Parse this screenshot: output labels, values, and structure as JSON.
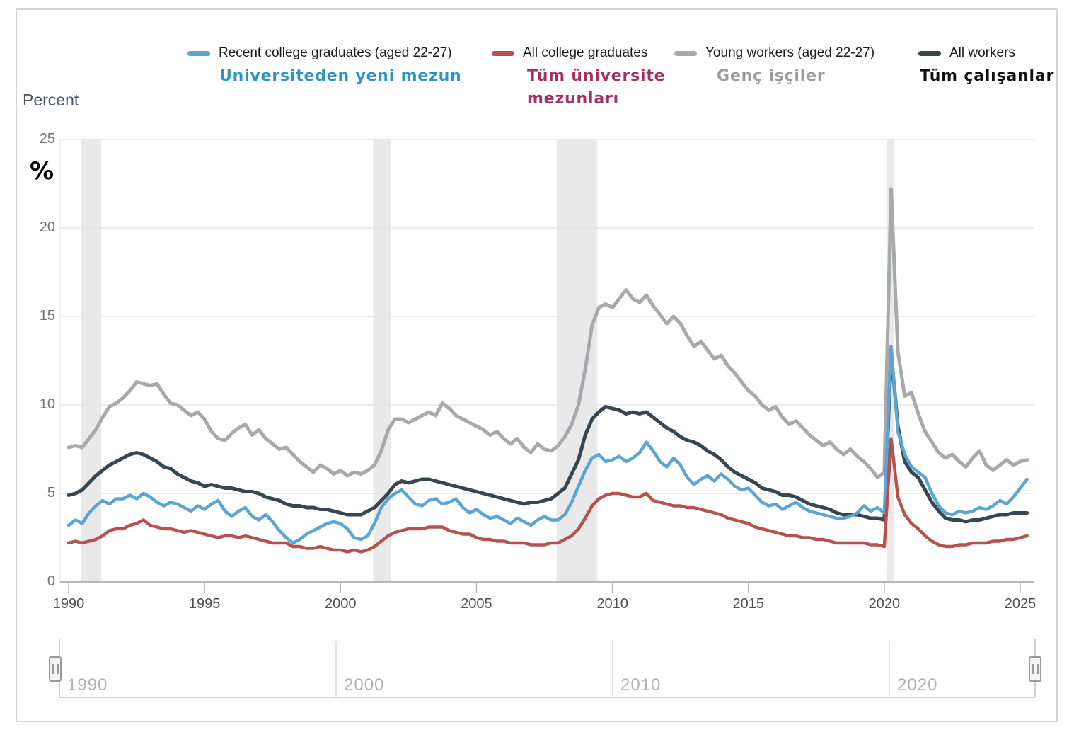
{
  "legend": {
    "items": [
      {
        "label": "Recent college graduates (aged 22-27)",
        "annotation": "Universiteden yeni mezun",
        "annotation2": "",
        "color": "#5BA4D4",
        "annotation_color": "#2E93C2"
      },
      {
        "label": "All college graduates",
        "annotation": "Tüm üniversite",
        "annotation2": "mezunları",
        "color": "#B5524E",
        "annotation_color": "#A33160"
      },
      {
        "label": "Young workers (aged 22-27)",
        "annotation": "Genç işçiler",
        "annotation2": "",
        "color": "#A7A9AC",
        "annotation_color": "#9B9B9B"
      },
      {
        "label": "All workers",
        "annotation": "Tüm çalışanlar",
        "annotation2": "",
        "color": "#37474F",
        "annotation_color": "#111111"
      }
    ]
  },
  "axis": {
    "title": "Percent",
    "percent_annotation": "%"
  },
  "slider": {
    "labels": [
      "1990",
      "2000",
      "2010",
      "2020"
    ]
  },
  "chart_data": {
    "type": "line",
    "title": "",
    "ylabel": "Percent",
    "x_start": 1990,
    "x_step": 0.25,
    "xlim": [
      1989.7,
      2025.6
    ],
    "ylim": [
      0,
      25
    ],
    "yticks": [
      0,
      5,
      10,
      15,
      20,
      25
    ],
    "xticks": [
      1990,
      1995,
      2000,
      2005,
      2010,
      2015,
      2020,
      2025
    ],
    "grid": true,
    "legend_position": "top",
    "recessions": [
      [
        1990.45,
        1991.2
      ],
      [
        2001.2,
        2001.85
      ],
      [
        2007.95,
        2009.45
      ],
      [
        2020.1,
        2020.35
      ]
    ],
    "series": [
      {
        "name": "Young workers (aged 22-27)",
        "color": "#A7A9AC",
        "values": [
          7.6,
          7.7,
          7.6,
          8.1,
          8.6,
          9.3,
          9.9,
          10.1,
          10.4,
          10.8,
          11.3,
          11.2,
          11.1,
          11.2,
          10.6,
          10.1,
          10.0,
          9.7,
          9.4,
          9.6,
          9.2,
          8.5,
          8.1,
          8.0,
          8.4,
          8.7,
          8.9,
          8.3,
          8.6,
          8.1,
          7.8,
          7.5,
          7.6,
          7.2,
          6.8,
          6.5,
          6.2,
          6.6,
          6.4,
          6.1,
          6.3,
          6.0,
          6.2,
          6.1,
          6.3,
          6.6,
          7.4,
          8.6,
          9.2,
          9.2,
          9.0,
          9.2,
          9.4,
          9.6,
          9.4,
          10.1,
          9.8,
          9.4,
          9.2,
          9.0,
          8.8,
          8.6,
          8.3,
          8.5,
          8.1,
          7.8,
          8.1,
          7.6,
          7.3,
          7.8,
          7.5,
          7.4,
          7.7,
          8.2,
          8.9,
          10.0,
          12.0,
          14.5,
          15.5,
          15.7,
          15.5,
          16.0,
          16.5,
          16.0,
          15.8,
          16.2,
          15.6,
          15.1,
          14.6,
          15.0,
          14.6,
          13.9,
          13.3,
          13.6,
          13.1,
          12.6,
          12.8,
          12.2,
          11.8,
          11.3,
          10.8,
          10.5,
          10.0,
          9.7,
          9.9,
          9.3,
          8.9,
          9.1,
          8.7,
          8.3,
          8.0,
          7.7,
          7.9,
          7.5,
          7.2,
          7.5,
          7.1,
          6.8,
          6.4,
          5.9,
          6.2,
          22.2,
          13.0,
          10.5,
          10.7,
          9.5,
          8.5,
          7.9,
          7.3,
          7.0,
          7.2,
          6.8,
          6.5,
          7.0,
          7.4,
          6.6,
          6.3,
          6.6,
          6.9,
          6.6,
          6.8,
          6.9
        ]
      },
      {
        "name": "All workers",
        "color": "#37474F",
        "values": [
          4.9,
          5.0,
          5.2,
          5.6,
          6.0,
          6.3,
          6.6,
          6.8,
          7.0,
          7.2,
          7.3,
          7.2,
          7.0,
          6.8,
          6.5,
          6.4,
          6.1,
          5.9,
          5.7,
          5.6,
          5.4,
          5.5,
          5.4,
          5.3,
          5.3,
          5.2,
          5.1,
          5.1,
          5.0,
          4.8,
          4.7,
          4.6,
          4.4,
          4.3,
          4.3,
          4.2,
          4.2,
          4.1,
          4.1,
          4.0,
          3.9,
          3.8,
          3.8,
          3.8,
          4.0,
          4.2,
          4.6,
          5.0,
          5.5,
          5.7,
          5.6,
          5.7,
          5.8,
          5.8,
          5.7,
          5.6,
          5.5,
          5.4,
          5.3,
          5.2,
          5.1,
          5.0,
          4.9,
          4.8,
          4.7,
          4.6,
          4.5,
          4.4,
          4.5,
          4.5,
          4.6,
          4.7,
          5.0,
          5.3,
          6.1,
          6.9,
          8.3,
          9.2,
          9.6,
          9.9,
          9.8,
          9.7,
          9.5,
          9.6,
          9.5,
          9.6,
          9.3,
          9.0,
          8.7,
          8.5,
          8.2,
          8.0,
          7.9,
          7.7,
          7.4,
          7.2,
          6.9,
          6.5,
          6.2,
          6.0,
          5.8,
          5.6,
          5.3,
          5.2,
          5.1,
          4.9,
          4.9,
          4.8,
          4.6,
          4.4,
          4.3,
          4.2,
          4.1,
          3.9,
          3.8,
          3.8,
          3.8,
          3.7,
          3.6,
          3.6,
          3.5,
          13.0,
          8.8,
          6.8,
          6.2,
          5.9,
          5.2,
          4.5,
          4.0,
          3.6,
          3.5,
          3.5,
          3.4,
          3.5,
          3.5,
          3.6,
          3.7,
          3.8,
          3.8,
          3.9,
          3.9,
          3.9
        ]
      },
      {
        "name": "Recent college graduates (aged 22-27)",
        "color": "#5BA4D4",
        "values": [
          3.2,
          3.5,
          3.3,
          3.9,
          4.3,
          4.6,
          4.4,
          4.7,
          4.7,
          4.9,
          4.7,
          5.0,
          4.8,
          4.5,
          4.3,
          4.5,
          4.4,
          4.2,
          4.0,
          4.3,
          4.1,
          4.4,
          4.6,
          4.0,
          3.7,
          4.0,
          4.2,
          3.7,
          3.5,
          3.8,
          3.4,
          2.9,
          2.5,
          2.2,
          2.4,
          2.7,
          2.9,
          3.1,
          3.3,
          3.4,
          3.3,
          3.0,
          2.5,
          2.4,
          2.6,
          3.3,
          4.2,
          4.7,
          5.0,
          5.2,
          4.8,
          4.4,
          4.3,
          4.6,
          4.7,
          4.4,
          4.5,
          4.7,
          4.2,
          3.9,
          4.1,
          3.8,
          3.6,
          3.7,
          3.5,
          3.3,
          3.6,
          3.4,
          3.2,
          3.5,
          3.7,
          3.5,
          3.5,
          3.8,
          4.5,
          5.4,
          6.3,
          7.0,
          7.2,
          6.8,
          6.9,
          7.1,
          6.8,
          7.0,
          7.3,
          7.9,
          7.4,
          6.8,
          6.5,
          7.0,
          6.6,
          5.9,
          5.5,
          5.8,
          6.0,
          5.7,
          6.1,
          5.8,
          5.4,
          5.2,
          5.3,
          4.9,
          4.5,
          4.3,
          4.4,
          4.1,
          4.3,
          4.5,
          4.2,
          4.0,
          3.9,
          3.8,
          3.7,
          3.6,
          3.6,
          3.7,
          3.9,
          4.3,
          4.0,
          4.2,
          3.9,
          13.3,
          8.5,
          7.2,
          6.5,
          6.2,
          5.9,
          5.0,
          4.3,
          3.9,
          3.8,
          4.0,
          3.9,
          4.0,
          4.2,
          4.1,
          4.3,
          4.6,
          4.4,
          4.8,
          5.3,
          5.8
        ]
      },
      {
        "name": "All college graduates",
        "color": "#B5524E",
        "values": [
          2.2,
          2.3,
          2.2,
          2.3,
          2.4,
          2.6,
          2.9,
          3.0,
          3.0,
          3.2,
          3.3,
          3.5,
          3.2,
          3.1,
          3.0,
          3.0,
          2.9,
          2.8,
          2.9,
          2.8,
          2.7,
          2.6,
          2.5,
          2.6,
          2.6,
          2.5,
          2.6,
          2.5,
          2.4,
          2.3,
          2.2,
          2.2,
          2.2,
          2.0,
          2.0,
          1.9,
          1.9,
          2.0,
          1.9,
          1.8,
          1.8,
          1.7,
          1.8,
          1.7,
          1.8,
          2.0,
          2.3,
          2.6,
          2.8,
          2.9,
          3.0,
          3.0,
          3.0,
          3.1,
          3.1,
          3.1,
          2.9,
          2.8,
          2.7,
          2.7,
          2.5,
          2.4,
          2.4,
          2.3,
          2.3,
          2.2,
          2.2,
          2.2,
          2.1,
          2.1,
          2.1,
          2.2,
          2.2,
          2.4,
          2.6,
          3.0,
          3.6,
          4.3,
          4.7,
          4.9,
          5.0,
          5.0,
          4.9,
          4.8,
          4.8,
          5.0,
          4.6,
          4.5,
          4.4,
          4.3,
          4.3,
          4.2,
          4.2,
          4.1,
          4.0,
          3.9,
          3.8,
          3.6,
          3.5,
          3.4,
          3.3,
          3.1,
          3.0,
          2.9,
          2.8,
          2.7,
          2.6,
          2.6,
          2.5,
          2.5,
          2.4,
          2.4,
          2.3,
          2.2,
          2.2,
          2.2,
          2.2,
          2.2,
          2.1,
          2.1,
          2.0,
          8.1,
          4.8,
          3.8,
          3.3,
          3.0,
          2.6,
          2.3,
          2.1,
          2.0,
          2.0,
          2.1,
          2.1,
          2.2,
          2.2,
          2.2,
          2.3,
          2.3,
          2.4,
          2.4,
          2.5,
          2.6
        ]
      }
    ]
  }
}
